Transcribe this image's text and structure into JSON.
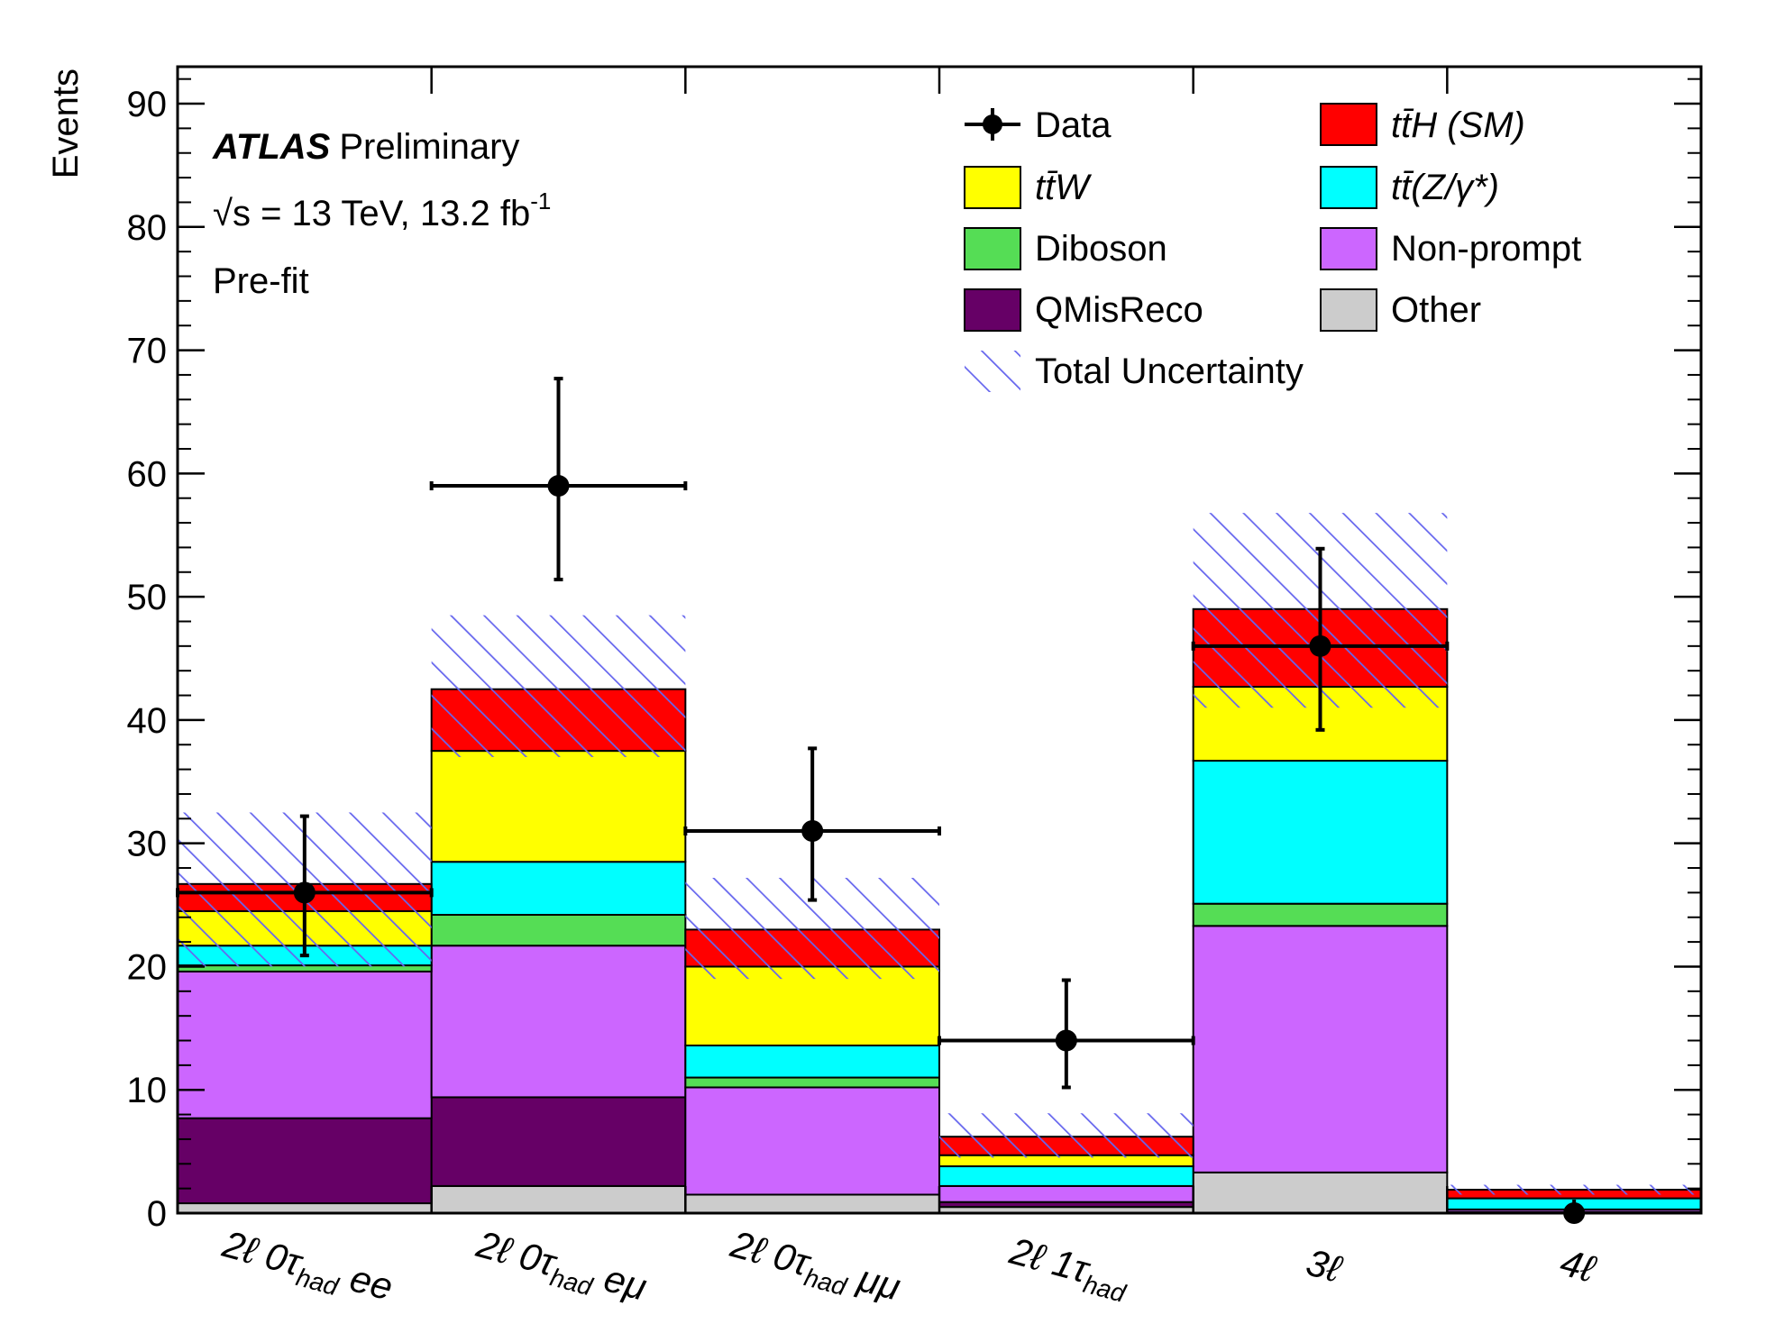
{
  "chart_data": {
    "type": "bar",
    "stacked": true,
    "categories": [
      "2ℓ 0τhad ee",
      "2ℓ 0τhad eμ",
      "2ℓ 0τhad μμ",
      "2ℓ 1τhad",
      "3ℓ",
      "4ℓ"
    ],
    "ylabel": "Events",
    "xlabel": "",
    "ylim": [
      0,
      93
    ],
    "yticks": [
      0,
      10,
      20,
      30,
      40,
      50,
      60,
      70,
      80,
      90
    ],
    "series": [
      {
        "name": "Other",
        "color": "#cccccc",
        "values": [
          0.8,
          2.2,
          1.5,
          0.5,
          3.3,
          0.1
        ]
      },
      {
        "name": "QMisReco",
        "color": "#660066",
        "values": [
          6.9,
          7.2,
          0.0,
          0.4,
          0.0,
          0.0
        ]
      },
      {
        "name": "Non-prompt",
        "color": "#cc66ff",
        "values": [
          11.9,
          12.3,
          8.7,
          1.3,
          20.0,
          0.2
        ]
      },
      {
        "name": "Diboson",
        "color": "#55dd55",
        "values": [
          0.5,
          2.5,
          0.8,
          0.0,
          1.8,
          0.0
        ]
      },
      {
        "name": "tt̄(Z/γ*)",
        "color": "#00ffff",
        "values": [
          1.6,
          4.3,
          2.6,
          1.6,
          11.6,
          0.9
        ]
      },
      {
        "name": "tt̄W",
        "color": "#ffff00",
        "values": [
          2.8,
          9.0,
          6.4,
          0.9,
          6.0,
          0.0
        ]
      },
      {
        "name": "tt̄H (SM)",
        "color": "#ff0000",
        "values": [
          2.2,
          5.0,
          3.0,
          1.5,
          6.3,
          0.7
        ]
      }
    ],
    "totals": [
      26.7,
      42.5,
      23.0,
      6.2,
      49.0,
      1.9
    ],
    "uncertainty": {
      "name": "Total Uncertainty",
      "low": [
        20.0,
        37.0,
        19.0,
        4.5,
        41.0,
        1.5
      ],
      "high": [
        32.5,
        48.5,
        27.2,
        8.1,
        56.8,
        2.3
      ]
    },
    "data": {
      "name": "Data",
      "values": [
        26,
        59,
        31,
        14,
        46,
        0
      ],
      "err_low": [
        5.1,
        7.6,
        5.6,
        3.8,
        6.8,
        0
      ],
      "err_high": [
        6.2,
        8.7,
        6.7,
        4.9,
        7.9,
        1.1
      ]
    },
    "legend": {
      "placement": "top-right",
      "entries": [
        {
          "label": "Data",
          "kind": "marker"
        },
        {
          "label": "tt̄H (SM)",
          "kind": "fill",
          "color": "#ff0000"
        },
        {
          "label": "tt̄W",
          "kind": "fill",
          "color": "#ffff00"
        },
        {
          "label": "tt̄(Z/γ*)",
          "kind": "fill",
          "color": "#00ffff"
        },
        {
          "label": "Diboson",
          "kind": "fill",
          "color": "#55dd55"
        },
        {
          "label": "Non-prompt",
          "kind": "fill",
          "color": "#cc66ff"
        },
        {
          "label": "QMisReco",
          "kind": "fill",
          "color": "#660066"
        },
        {
          "label": "Other",
          "kind": "fill",
          "color": "#cccccc"
        },
        {
          "label": "Total Uncertainty",
          "kind": "hatch",
          "color": "#6666ee"
        }
      ]
    },
    "annotations": {
      "experiment": "ATLAS",
      "status": "Preliminary",
      "energy": "√s = 13 TeV, 13.2 fb",
      "lumi_exp": "-1",
      "fit": "Pre-fit"
    }
  }
}
